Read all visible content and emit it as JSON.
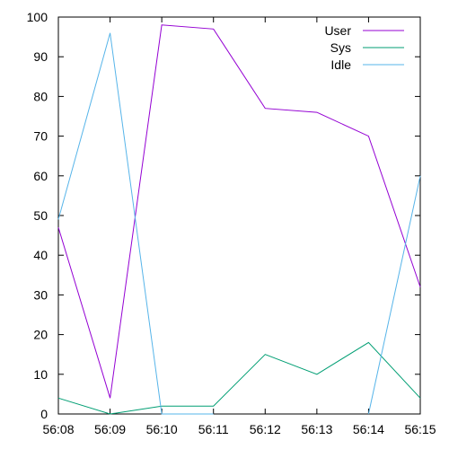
{
  "chart_data": {
    "type": "line",
    "title": "",
    "xlabel": "",
    "ylabel": "",
    "categories": [
      "56:08",
      "56:09",
      "56:10",
      "56:11",
      "56:12",
      "56:13",
      "56:14",
      "56:15"
    ],
    "ylim": [
      0,
      100
    ],
    "yticks": [
      0,
      10,
      20,
      30,
      40,
      50,
      60,
      70,
      80,
      90,
      100
    ],
    "grid": false,
    "legend_position": "top-right",
    "series": [
      {
        "name": "User",
        "color": "#9400d3",
        "values": [
          47,
          4,
          98,
          97,
          77,
          76,
          70,
          32
        ]
      },
      {
        "name": "Sys",
        "color": "#009e73",
        "values": [
          4,
          0,
          2,
          2,
          15,
          10,
          18,
          4
        ]
      },
      {
        "name": "Idle",
        "color": "#56b4e9",
        "values": [
          49,
          96,
          0,
          0,
          null,
          null,
          0,
          60
        ]
      }
    ]
  }
}
